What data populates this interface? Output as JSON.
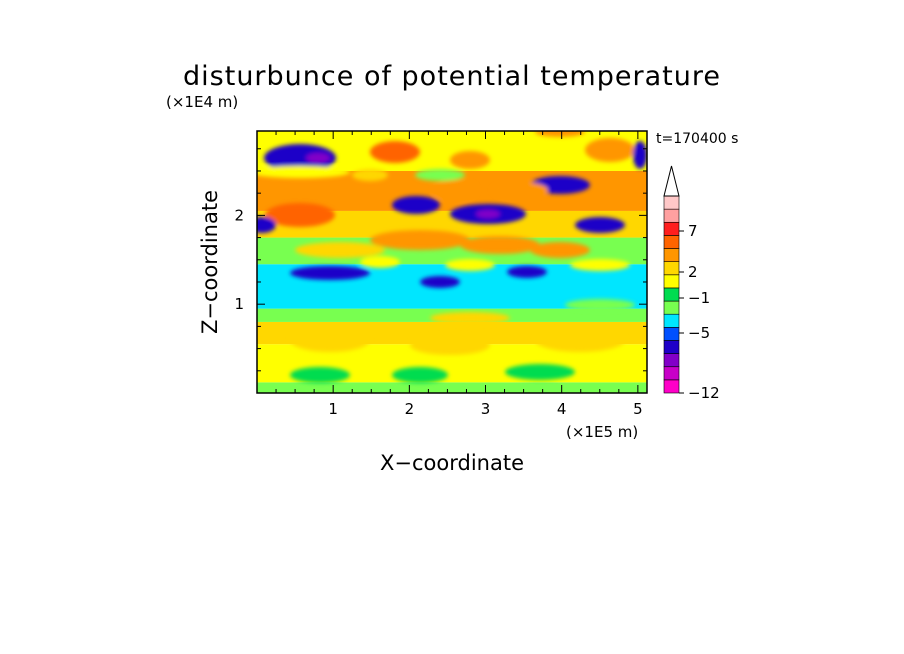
{
  "chart_data": {
    "type": "heatmap",
    "title": "disturbunce of potential temperature",
    "xlabel": "X−coordinate",
    "ylabel": "Z−coordinate",
    "x_unit": "(×1E5 m)",
    "y_unit": "(×1E4 m)",
    "time_label": "t=170400 s",
    "xlim": [
      0,
      5.12
    ],
    "ylim": [
      0,
      2.95
    ],
    "x_ticks": [
      "1",
      "2",
      "3",
      "4",
      "5"
    ],
    "y_ticks": [
      "1",
      "2"
    ],
    "colorbar": {
      "colors": [
        "#ff00c8",
        "#c800c8",
        "#8200c8",
        "#1e00c8",
        "#0050ff",
        "#00e6ff",
        "#78ff50",
        "#00dc50",
        "#ffff00",
        "#ffd700",
        "#ff9600",
        "#ff6400",
        "#ff1e1e",
        "#ffa0a0",
        "#ffc8c8"
      ],
      "tick_labels": [
        "7",
        "2",
        "−1",
        "−5",
        "−12"
      ],
      "extend": "max"
    },
    "field_bands": [
      {
        "z": [
          0.0,
          0.12
        ],
        "color": "#78ff50"
      },
      {
        "z": [
          0.12,
          0.55
        ],
        "color": "#ffff00"
      },
      {
        "z": [
          0.55,
          0.8
        ],
        "color": "#ffd700"
      },
      {
        "z": [
          0.8,
          0.95
        ],
        "color": "#78ff50"
      },
      {
        "z": [
          0.95,
          1.45
        ],
        "color": "#00e6ff"
      },
      {
        "z": [
          1.45,
          1.75
        ],
        "color": "#78ff50"
      },
      {
        "z": [
          1.75,
          2.05
        ],
        "color": "#ffd700"
      },
      {
        "z": [
          2.05,
          2.5
        ],
        "color": "#ff9600"
      },
      {
        "z": [
          2.5,
          2.95
        ],
        "color": "#ffff00"
      }
    ]
  }
}
